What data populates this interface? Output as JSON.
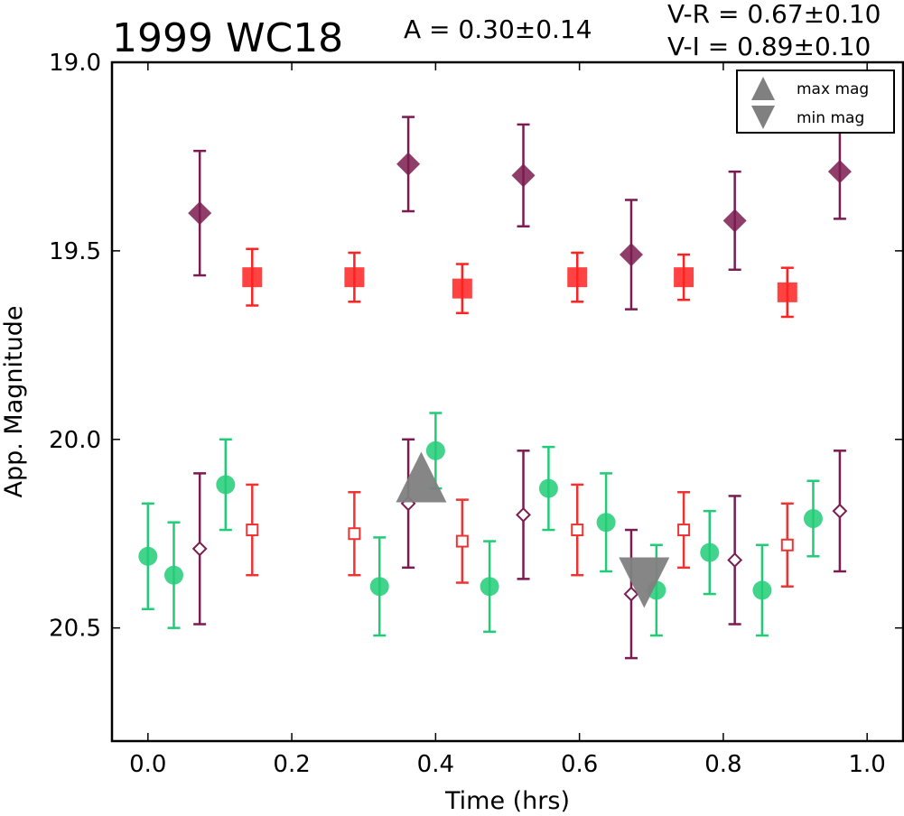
{
  "chart_data": {
    "type": "scatter",
    "title": "1999 WC18",
    "amplitude_text": "A  = 0.30±0.14",
    "color_texts": [
      "V-R = 0.67±0.10",
      "V-I  = 0.89±0.10"
    ],
    "xlabel": "Time (hrs)",
    "ylabel": "App. Magnitude",
    "xlim": [
      -0.05,
      1.05
    ],
    "ylim": [
      20.8,
      19.0
    ],
    "y_inverted": true,
    "x_ticks": [
      "0.0",
      "0.2",
      "0.4",
      "0.6",
      "0.8",
      "1.0"
    ],
    "y_ticks": [
      "19.0",
      "19.5",
      "20.0",
      "20.5"
    ],
    "grid": false,
    "legend_position": "top-right",
    "legend": [
      {
        "label": "max mag",
        "marker": "triangle-up",
        "color": "#808080"
      },
      {
        "label": "min mag",
        "marker": "triangle-down",
        "color": "#808080"
      }
    ],
    "extrema": [
      {
        "label": "max mag",
        "x": 0.38,
        "y": 20.1
      },
      {
        "label": "min mag",
        "x": 0.69,
        "y": 20.38
      }
    ],
    "series": [
      {
        "marker": "diamond-filled",
        "color": "#7b1b4f",
        "points": [
          {
            "x": 0.072,
            "y": 19.4,
            "err": 0.165
          },
          {
            "x": 0.362,
            "y": 19.27,
            "err": 0.125
          },
          {
            "x": 0.522,
            "y": 19.3,
            "err": 0.135
          },
          {
            "x": 0.672,
            "y": 19.51,
            "err": 0.145
          },
          {
            "x": 0.816,
            "y": 19.42,
            "err": 0.13
          },
          {
            "x": 0.962,
            "y": 19.29,
            "err": 0.125
          }
        ]
      },
      {
        "marker": "square-filled",
        "color": "#ff2222",
        "points": [
          {
            "x": 0.145,
            "y": 19.57,
            "err": 0.075
          },
          {
            "x": 0.287,
            "y": 19.57,
            "err": 0.065
          },
          {
            "x": 0.437,
            "y": 19.6,
            "err": 0.065
          },
          {
            "x": 0.597,
            "y": 19.57,
            "err": 0.065
          },
          {
            "x": 0.745,
            "y": 19.57,
            "err": 0.06
          },
          {
            "x": 0.889,
            "y": 19.61,
            "err": 0.065
          }
        ]
      },
      {
        "marker": "circle-filled",
        "color": "#22cc77",
        "points": [
          {
            "x": 0.0,
            "y": 20.31,
            "err": 0.14
          },
          {
            "x": 0.036,
            "y": 20.36,
            "err": 0.14
          },
          {
            "x": 0.108,
            "y": 20.12,
            "err": 0.12
          },
          {
            "x": 0.322,
            "y": 20.39,
            "err": 0.13
          },
          {
            "x": 0.4,
            "y": 20.03,
            "err": 0.1
          },
          {
            "x": 0.475,
            "y": 20.39,
            "err": 0.12
          },
          {
            "x": 0.557,
            "y": 20.13,
            "err": 0.11
          },
          {
            "x": 0.637,
            "y": 20.22,
            "err": 0.13
          },
          {
            "x": 0.707,
            "y": 20.4,
            "err": 0.12
          },
          {
            "x": 0.781,
            "y": 20.3,
            "err": 0.11
          },
          {
            "x": 0.854,
            "y": 20.4,
            "err": 0.12
          },
          {
            "x": 0.925,
            "y": 20.21,
            "err": 0.1
          }
        ]
      },
      {
        "marker": "diamond-open",
        "color": "#7b1b4f",
        "points": [
          {
            "x": 0.072,
            "y": 20.29,
            "err": 0.2
          },
          {
            "x": 0.362,
            "y": 20.17,
            "err": 0.17
          },
          {
            "x": 0.522,
            "y": 20.2,
            "err": 0.17
          },
          {
            "x": 0.672,
            "y": 20.41,
            "err": 0.17
          },
          {
            "x": 0.816,
            "y": 20.32,
            "err": 0.17
          },
          {
            "x": 0.962,
            "y": 20.19,
            "err": 0.16
          }
        ]
      },
      {
        "marker": "square-open",
        "color": "#ee3333",
        "points": [
          {
            "x": 0.145,
            "y": 20.24,
            "err": 0.12
          },
          {
            "x": 0.287,
            "y": 20.25,
            "err": 0.11
          },
          {
            "x": 0.437,
            "y": 20.27,
            "err": 0.11
          },
          {
            "x": 0.597,
            "y": 20.24,
            "err": 0.12
          },
          {
            "x": 0.745,
            "y": 20.24,
            "err": 0.1
          },
          {
            "x": 0.889,
            "y": 20.28,
            "err": 0.11
          }
        ]
      }
    ]
  }
}
